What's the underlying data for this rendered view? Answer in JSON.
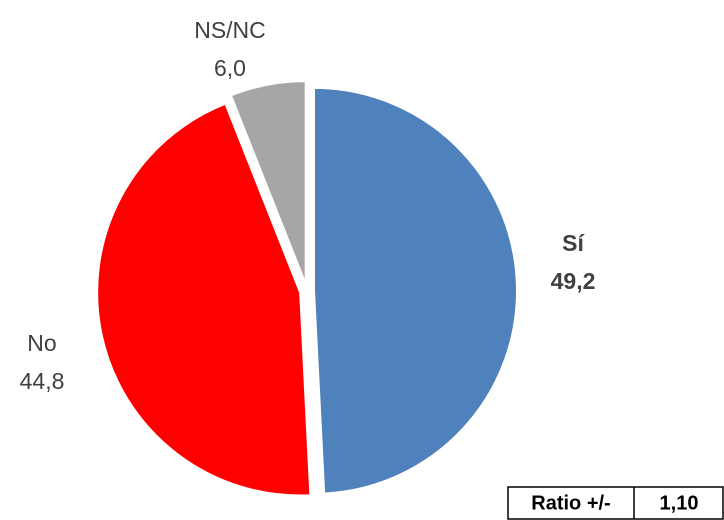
{
  "chart_data": {
    "type": "pie",
    "categories": [
      "Sí",
      "No",
      "NS/NC"
    ],
    "values": [
      49.2,
      44.8,
      6.0
    ],
    "value_labels": [
      "49,2",
      "44,8",
      "6,0"
    ],
    "colors": [
      "#4f81bd",
      "#ff0000",
      "#a6a6a6"
    ],
    "bold_labels": [
      "Sí"
    ]
  },
  "table": {
    "rows": [
      [
        "Ratio +/-",
        "1,10"
      ]
    ]
  }
}
